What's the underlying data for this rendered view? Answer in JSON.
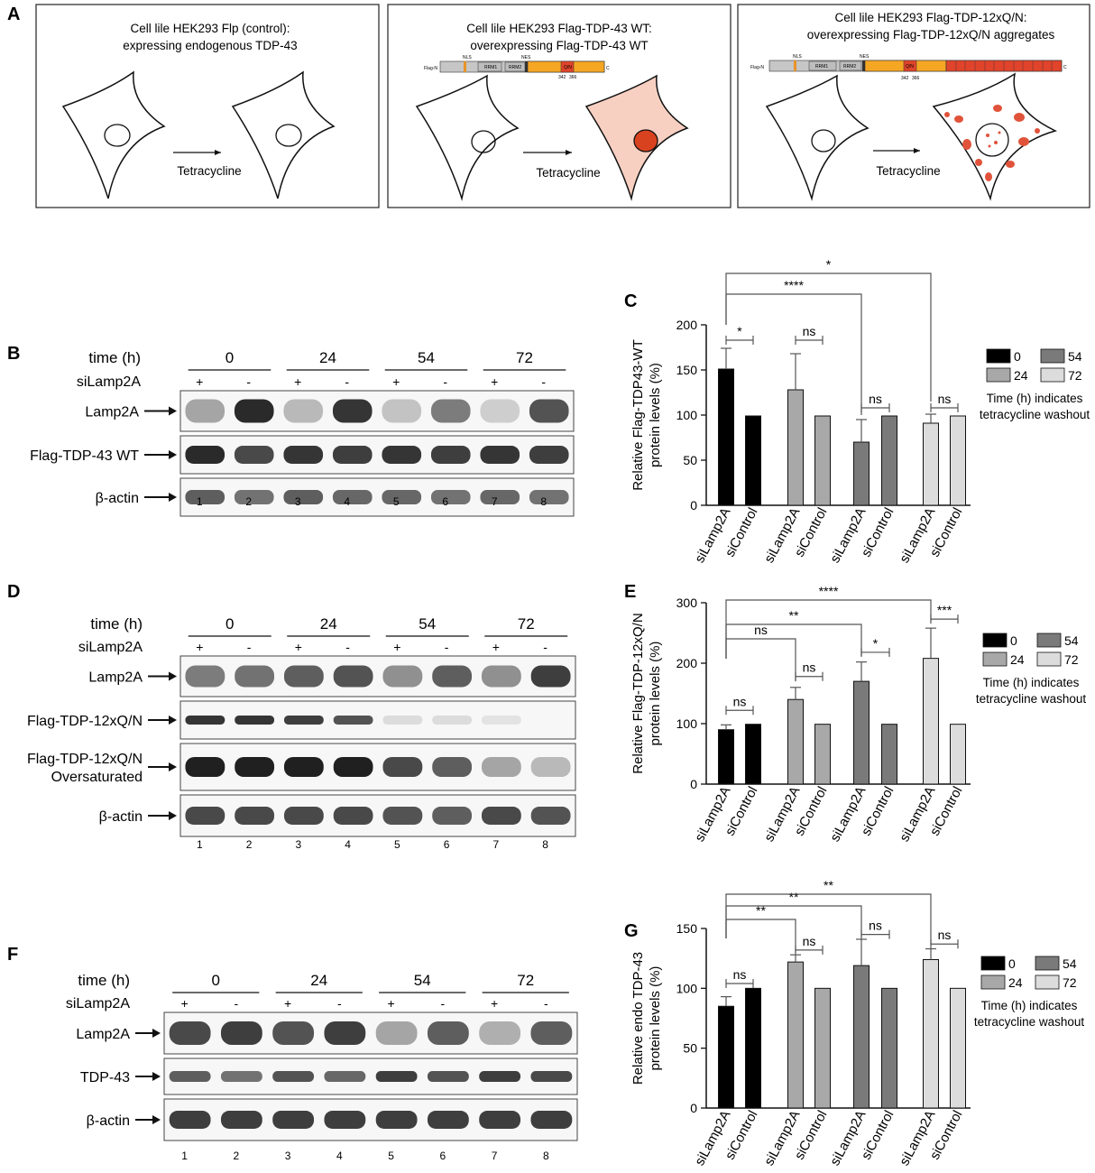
{
  "panel_letters": {
    "a": "A",
    "b": "B",
    "c": "C",
    "d": "D",
    "e": "E",
    "f": "F",
    "g": "G"
  },
  "panel_a": {
    "boxes": [
      {
        "title1": "Cell lile HEK293 Flp (control):",
        "title2": "expressing endogenous TDP-43",
        "arrow_label": "Tetracycline"
      },
      {
        "title1": "Cell lile HEK293 Flag-TDP-43 WT:",
        "title2": "overexpressing  Flag-TDP-43 WT",
        "arrow_label": "Tetracycline"
      },
      {
        "title1": "Cell lile HEK293 Flag-TDP-12xQ/N:",
        "title2": "overexpressing  Flag-TDP-12xQ/N aggregates",
        "arrow_label": "Tetracycline"
      }
    ],
    "construct": {
      "n_term": "Flag-N",
      "c_term": "C",
      "nls": "NLS",
      "nes": "NES",
      "rrm1": "RRM1",
      "rrm2": "RRM2",
      "qn": "Q/N",
      "pos1": "342",
      "pos2": "366"
    }
  },
  "blot_common": {
    "time_label": "time (h)",
    "si_label": "siLamp2A",
    "times": [
      "0",
      "24",
      "54",
      "72"
    ],
    "signs": [
      "+",
      "-",
      "+",
      "-",
      "+",
      "-",
      "+",
      "-"
    ],
    "lanes": [
      "1",
      "2",
      "3",
      "4",
      "5",
      "6",
      "7",
      "8"
    ]
  },
  "blot_b": {
    "rows": [
      "Lamp2A",
      "Flag-TDP-43 WT",
      "β-actin"
    ]
  },
  "blot_d": {
    "rows": [
      "Lamp2A",
      "Flag-TDP-12xQ/N",
      "Flag-TDP-12xQ/N",
      "Oversaturated",
      "β-actin"
    ]
  },
  "blot_f": {
    "rows": [
      "Lamp2A",
      "TDP-43",
      "β-actin"
    ]
  },
  "legend": {
    "items": [
      "0",
      "54",
      "24",
      "72"
    ],
    "note1": "Time (h) indicates",
    "note2": "tetracycline washout",
    "colors": [
      "#000000",
      "#7a7a7a",
      "#a8a8a8",
      "#dcdcdc"
    ]
  },
  "chart_data": [
    {
      "type": "bar",
      "panel": "C",
      "ylabel": "Relative Flag-TDP43-WT protein levels (%)",
      "ylabel_line1": "Relative Flag-TDP43-WT",
      "ylabel_line2": "protein levels (%)",
      "ylim": [
        0,
        200
      ],
      "yticks": [
        "0",
        "50",
        "100",
        "150",
        "200"
      ],
      "categories": [
        "siLamp2A",
        "siControl",
        "siLamp2A",
        "siControl",
        "siLamp2A",
        "siControl",
        "siLamp2A",
        "siControl"
      ],
      "values": [
        151,
        99,
        128,
        99,
        70,
        99,
        91,
        99
      ],
      "errors": [
        23,
        0,
        40,
        0,
        25,
        0,
        10,
        0
      ],
      "significance": [
        "*",
        "ns",
        "ns",
        "ns",
        "****",
        "*"
      ]
    },
    {
      "type": "bar",
      "panel": "E",
      "ylabel": "Relative Flag-TDP-12xQ/N protein levels (%)",
      "ylabel_line1": "Relative Flag-TDP-12xQ/N",
      "ylabel_line2": "protein levels (%)",
      "ylim": [
        0,
        300
      ],
      "yticks": [
        "0",
        "100",
        "200",
        "300"
      ],
      "categories": [
        "siLamp2A",
        "siControl",
        "siLamp2A",
        "siControl",
        "siLamp2A",
        "siControl",
        "siLamp2A",
        "siControl"
      ],
      "values": [
        90,
        99,
        140,
        99,
        170,
        99,
        208,
        99
      ],
      "errors": [
        8,
        0,
        20,
        0,
        32,
        0,
        50,
        0
      ],
      "significance": [
        "ns",
        "ns",
        "*",
        "***",
        "ns",
        "**",
        "****"
      ]
    },
    {
      "type": "bar",
      "panel": "G",
      "ylabel": "Relative endo TDP-43 protein levels (%)",
      "ylabel_line1": "Relative endo TDP-43",
      "ylabel_line2": "protein levels (%)",
      "ylim": [
        0,
        150
      ],
      "yticks": [
        "0",
        "50",
        "100",
        "150"
      ],
      "categories": [
        "siLamp2A",
        "siControl",
        "siLamp2A",
        "siControl",
        "siLamp2A",
        "siControl",
        "siLamp2A",
        "siControl"
      ],
      "values": [
        85,
        100,
        122,
        100,
        119,
        100,
        124,
        100
      ],
      "errors": [
        8,
        0,
        6,
        0,
        22,
        0,
        9,
        0
      ],
      "significance": [
        "ns",
        "ns",
        "ns",
        "ns",
        "**",
        "**",
        "**"
      ]
    }
  ]
}
